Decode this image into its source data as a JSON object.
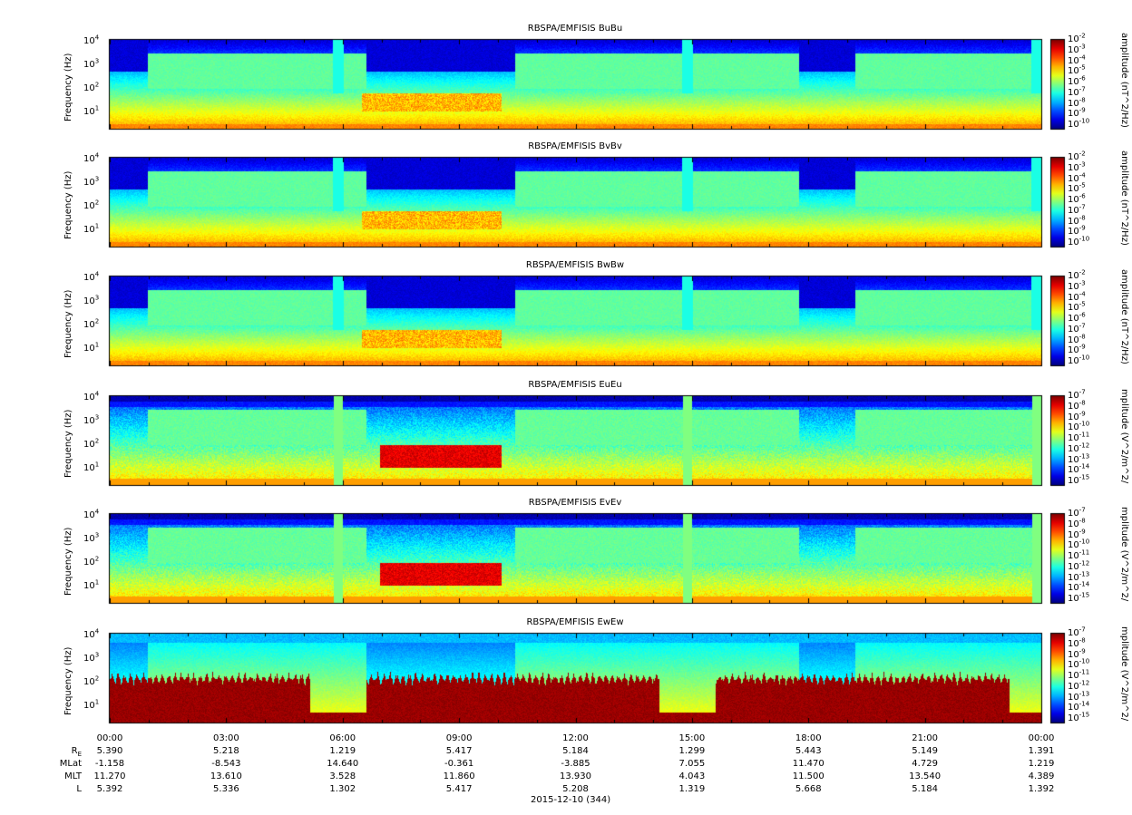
{
  "chart_data": [
    {
      "type": "heatmap",
      "title": "RBSPA/EMFISIS  BuBu",
      "ylabel": "Frequency (Hz)",
      "yticks": [
        "10",
        "10",
        "10",
        "10"
      ],
      "yexp": [
        "1",
        "2",
        "3",
        "4"
      ],
      "cblabel": "amplitude (nT^2/Hz)",
      "cbticks": [
        "-2",
        "-3",
        "-4",
        "-5",
        "-6",
        "-7",
        "-8",
        "-9",
        "-10"
      ],
      "kind": "B"
    },
    {
      "type": "heatmap",
      "title": "RBSPA/EMFISIS  BvBv",
      "ylabel": "Frequency (Hz)",
      "yticks": [
        "10",
        "10",
        "10",
        "10"
      ],
      "yexp": [
        "1",
        "2",
        "3",
        "4"
      ],
      "cblabel": "amplitude (nT^2/Hz)",
      "cbticks": [
        "-2",
        "-3",
        "-4",
        "-5",
        "-6",
        "-7",
        "-8",
        "-9",
        "-10"
      ],
      "kind": "B"
    },
    {
      "type": "heatmap",
      "title": "RBSPA/EMFISIS  BwBw",
      "ylabel": "Frequency (Hz)",
      "yticks": [
        "10",
        "10",
        "10",
        "10"
      ],
      "yexp": [
        "1",
        "2",
        "3",
        "4"
      ],
      "cblabel": "amplitude (nT^2/Hz)",
      "cbticks": [
        "-2",
        "-3",
        "-4",
        "-5",
        "-6",
        "-7",
        "-8",
        "-9",
        "-10"
      ],
      "kind": "B"
    },
    {
      "type": "heatmap",
      "title": "RBSPA/EMFISIS  EuEu",
      "ylabel": "Frequency (Hz)",
      "yticks": [
        "10",
        "10",
        "10",
        "10"
      ],
      "yexp": [
        "1",
        "2",
        "3",
        "4"
      ],
      "cblabel": "mplitude (V^2/m^2/",
      "cbticks": [
        "-7",
        "-8",
        "-9",
        "-10",
        "-11",
        "-12",
        "-13",
        "-14",
        "-15"
      ],
      "kind": "E"
    },
    {
      "type": "heatmap",
      "title": "RBSPA/EMFISIS  EvEv",
      "ylabel": "Frequency (Hz)",
      "yticks": [
        "10",
        "10",
        "10",
        "10"
      ],
      "yexp": [
        "1",
        "2",
        "3",
        "4"
      ],
      "cblabel": "mplitude (V^2/m^2/",
      "cbticks": [
        "-7",
        "-8",
        "-9",
        "-10",
        "-11",
        "-12",
        "-13",
        "-14",
        "-15"
      ],
      "kind": "E"
    },
    {
      "type": "heatmap",
      "title": "RBSPA/EMFISIS  EwEw",
      "ylabel": "Frequency (Hz)",
      "yticks": [
        "10",
        "10",
        "10",
        "10"
      ],
      "yexp": [
        "1",
        "2",
        "3",
        "4"
      ],
      "cblabel": "mplitude (V^2/m^2/",
      "cbticks": [
        "-7",
        "-8",
        "-9",
        "-10",
        "-11",
        "-12",
        "-13",
        "-14",
        "-15"
      ],
      "kind": "Ew"
    }
  ],
  "time_axis": {
    "ticks": [
      "00:00",
      "03:00",
      "06:00",
      "09:00",
      "12:00",
      "15:00",
      "18:00",
      "21:00",
      "00:00"
    ],
    "rows": [
      {
        "label": "R",
        "sub": "E",
        "values": [
          "5.390",
          "5.218",
          "1.219",
          "5.417",
          "5.184",
          "1.299",
          "5.443",
          "5.149",
          "1.391"
        ]
      },
      {
        "label": "MLat",
        "values": [
          "-1.158",
          "-8.543",
          "14.640",
          "-0.361",
          "-3.885",
          "7.055",
          "11.470",
          "4.729",
          "1.219"
        ]
      },
      {
        "label": "MLT",
        "values": [
          "11.270",
          "13.610",
          "3.528",
          "11.860",
          "13.930",
          "4.043",
          "11.500",
          "13.540",
          "4.389"
        ]
      },
      {
        "label": "L",
        "values": [
          "5.392",
          "5.336",
          "1.302",
          "5.417",
          "5.208",
          "1.319",
          "5.668",
          "5.184",
          "1.392"
        ]
      }
    ],
    "date": "2015-12-10 (344)"
  },
  "colorbar_base": "10"
}
